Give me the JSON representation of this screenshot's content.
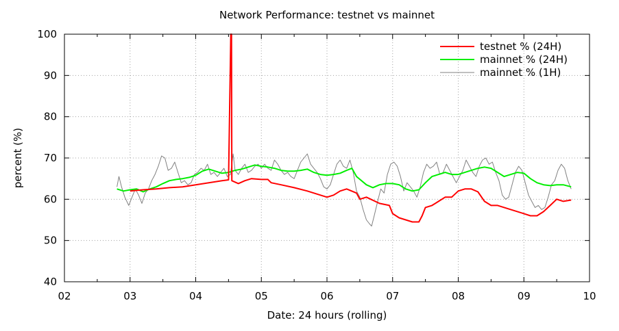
{
  "chart_data": {
    "type": "line",
    "title": "Network Performance: testnet vs mainnet",
    "xlabel": "Date: 24 hours (rolling)",
    "ylabel": "percent (%)",
    "xlim": [
      2,
      10
    ],
    "ylim": [
      40,
      100
    ],
    "x_ticks": [
      2,
      3,
      4,
      5,
      6,
      7,
      8,
      9,
      10
    ],
    "x_tick_labels": [
      "02",
      "03",
      "04",
      "05",
      "06",
      "07",
      "08",
      "09",
      "10"
    ],
    "y_ticks": [
      40,
      50,
      60,
      70,
      80,
      90,
      100
    ],
    "y_tick_labels": [
      "40",
      "50",
      "60",
      "70",
      "80",
      "90",
      "100"
    ],
    "grid": true,
    "legend_position": "top-right",
    "series": [
      {
        "name": "testnet % (24H)",
        "color": "#ff0000",
        "points": [
          [
            3.0,
            62.0
          ],
          [
            3.2,
            62.3
          ],
          [
            3.4,
            62.5
          ],
          [
            3.6,
            62.8
          ],
          [
            3.8,
            63.0
          ],
          [
            4.0,
            63.5
          ],
          [
            4.2,
            64.0
          ],
          [
            4.4,
            64.5
          ],
          [
            4.5,
            64.7
          ],
          [
            4.535,
            100
          ],
          [
            4.545,
            100
          ],
          [
            4.55,
            64.5
          ],
          [
            4.65,
            63.8
          ],
          [
            4.75,
            64.5
          ],
          [
            4.85,
            65.0
          ],
          [
            5.0,
            64.8
          ],
          [
            5.1,
            64.8
          ],
          [
            5.15,
            64.0
          ],
          [
            5.3,
            63.5
          ],
          [
            5.5,
            62.8
          ],
          [
            5.7,
            62.0
          ],
          [
            5.9,
            61.0
          ],
          [
            6.0,
            60.5
          ],
          [
            6.1,
            61.0
          ],
          [
            6.2,
            62.0
          ],
          [
            6.3,
            62.5
          ],
          [
            6.45,
            61.5
          ],
          [
            6.5,
            60.0
          ],
          [
            6.6,
            60.5
          ],
          [
            6.8,
            59.0
          ],
          [
            6.95,
            58.5
          ],
          [
            7.0,
            56.5
          ],
          [
            7.1,
            55.5
          ],
          [
            7.2,
            55.0
          ],
          [
            7.3,
            54.5
          ],
          [
            7.4,
            54.5
          ],
          [
            7.45,
            56.0
          ],
          [
            7.5,
            58.0
          ],
          [
            7.6,
            58.5
          ],
          [
            7.7,
            59.5
          ],
          [
            7.8,
            60.5
          ],
          [
            7.9,
            60.5
          ],
          [
            8.0,
            62.0
          ],
          [
            8.1,
            62.5
          ],
          [
            8.2,
            62.5
          ],
          [
            8.3,
            61.8
          ],
          [
            8.4,
            59.5
          ],
          [
            8.5,
            58.5
          ],
          [
            8.6,
            58.5
          ],
          [
            8.7,
            58.0
          ],
          [
            8.8,
            57.5
          ],
          [
            9.0,
            56.5
          ],
          [
            9.1,
            56.0
          ],
          [
            9.2,
            56.0
          ],
          [
            9.3,
            57.0
          ],
          [
            9.4,
            58.5
          ],
          [
            9.5,
            60.0
          ],
          [
            9.6,
            59.5
          ],
          [
            9.72,
            59.8
          ]
        ]
      },
      {
        "name": "mainnet % (24H)",
        "color": "#00ee00",
        "points": [
          [
            2.8,
            62.5
          ],
          [
            2.9,
            62.0
          ],
          [
            3.0,
            62.3
          ],
          [
            3.1,
            62.5
          ],
          [
            3.2,
            61.8
          ],
          [
            3.3,
            62.5
          ],
          [
            3.4,
            63.0
          ],
          [
            3.5,
            63.8
          ],
          [
            3.6,
            64.5
          ],
          [
            3.7,
            64.8
          ],
          [
            3.8,
            65.0
          ],
          [
            3.9,
            65.3
          ],
          [
            4.0,
            65.8
          ],
          [
            4.1,
            66.8
          ],
          [
            4.2,
            67.3
          ],
          [
            4.3,
            66.8
          ],
          [
            4.4,
            66.3
          ],
          [
            4.5,
            66.5
          ],
          [
            4.6,
            67.0
          ],
          [
            4.7,
            67.3
          ],
          [
            4.8,
            67.8
          ],
          [
            4.9,
            68.3
          ],
          [
            5.0,
            68.0
          ],
          [
            5.1,
            67.8
          ],
          [
            5.2,
            67.5
          ],
          [
            5.3,
            67.0
          ],
          [
            5.4,
            66.8
          ],
          [
            5.5,
            66.8
          ],
          [
            5.6,
            67.0
          ],
          [
            5.7,
            67.3
          ],
          [
            5.8,
            66.5
          ],
          [
            5.9,
            66.0
          ],
          [
            6.0,
            65.8
          ],
          [
            6.1,
            66.0
          ],
          [
            6.2,
            66.3
          ],
          [
            6.3,
            67.0
          ],
          [
            6.38,
            67.5
          ],
          [
            6.45,
            65.5
          ],
          [
            6.6,
            63.5
          ],
          [
            6.7,
            62.8
          ],
          [
            6.8,
            63.5
          ],
          [
            6.9,
            63.8
          ],
          [
            7.0,
            63.8
          ],
          [
            7.1,
            63.5
          ],
          [
            7.2,
            62.5
          ],
          [
            7.3,
            62.0
          ],
          [
            7.4,
            62.3
          ],
          [
            7.5,
            64.0
          ],
          [
            7.6,
            65.5
          ],
          [
            7.7,
            66.0
          ],
          [
            7.8,
            66.5
          ],
          [
            7.9,
            66.0
          ],
          [
            8.0,
            66.0
          ],
          [
            8.1,
            66.5
          ],
          [
            8.2,
            67.0
          ],
          [
            8.3,
            67.5
          ],
          [
            8.4,
            67.8
          ],
          [
            8.5,
            67.5
          ],
          [
            8.6,
            66.5
          ],
          [
            8.7,
            65.5
          ],
          [
            8.8,
            66.0
          ],
          [
            8.9,
            66.5
          ],
          [
            9.0,
            66.3
          ],
          [
            9.1,
            65.0
          ],
          [
            9.2,
            64.0
          ],
          [
            9.3,
            63.5
          ],
          [
            9.4,
            63.3
          ],
          [
            9.5,
            63.5
          ],
          [
            9.6,
            63.5
          ],
          [
            9.72,
            63.0
          ]
        ]
      },
      {
        "name": "mainnet % (1H)",
        "color": "#808080",
        "points": [
          [
            2.8,
            63.0
          ],
          [
            2.83,
            65.5
          ],
          [
            2.87,
            63.0
          ],
          [
            2.92,
            60.5
          ],
          [
            2.98,
            58.5
          ],
          [
            3.03,
            60.5
          ],
          [
            3.08,
            62.5
          ],
          [
            3.13,
            61.0
          ],
          [
            3.18,
            59.0
          ],
          [
            3.23,
            61.5
          ],
          [
            3.28,
            62.5
          ],
          [
            3.33,
            64.5
          ],
          [
            3.38,
            66.0
          ],
          [
            3.43,
            68.0
          ],
          [
            3.48,
            70.5
          ],
          [
            3.53,
            70.0
          ],
          [
            3.58,
            67.0
          ],
          [
            3.63,
            67.5
          ],
          [
            3.68,
            69.0
          ],
          [
            3.73,
            66.5
          ],
          [
            3.78,
            64.0
          ],
          [
            3.83,
            64.5
          ],
          [
            3.88,
            63.5
          ],
          [
            3.93,
            64.0
          ],
          [
            3.98,
            66.0
          ],
          [
            4.03,
            66.5
          ],
          [
            4.08,
            67.5
          ],
          [
            4.13,
            67.0
          ],
          [
            4.18,
            68.5
          ],
          [
            4.23,
            66.0
          ],
          [
            4.28,
            66.5
          ],
          [
            4.33,
            65.5
          ],
          [
            4.38,
            66.5
          ],
          [
            4.43,
            67.5
          ],
          [
            4.48,
            65.5
          ],
          [
            4.53,
            66.0
          ],
          [
            4.57,
            71.0
          ],
          [
            4.6,
            67.0
          ],
          [
            4.65,
            66.0
          ],
          [
            4.7,
            67.5
          ],
          [
            4.75,
            68.5
          ],
          [
            4.8,
            66.5
          ],
          [
            4.85,
            67.0
          ],
          [
            4.9,
            68.0
          ],
          [
            4.95,
            68.5
          ],
          [
            5.0,
            67.5
          ],
          [
            5.05,
            68.5
          ],
          [
            5.1,
            67.5
          ],
          [
            5.15,
            67.0
          ],
          [
            5.2,
            69.5
          ],
          [
            5.25,
            68.5
          ],
          [
            5.3,
            67.0
          ],
          [
            5.35,
            66.0
          ],
          [
            5.4,
            66.5
          ],
          [
            5.45,
            65.5
          ],
          [
            5.5,
            65.0
          ],
          [
            5.55,
            67.0
          ],
          [
            5.6,
            69.0
          ],
          [
            5.65,
            70.0
          ],
          [
            5.7,
            71.0
          ],
          [
            5.75,
            68.5
          ],
          [
            5.8,
            67.5
          ],
          [
            5.85,
            66.5
          ],
          [
            5.9,
            65.0
          ],
          [
            5.95,
            63.0
          ],
          [
            6.0,
            62.5
          ],
          [
            6.05,
            63.5
          ],
          [
            6.1,
            66.0
          ],
          [
            6.15,
            68.5
          ],
          [
            6.2,
            69.5
          ],
          [
            6.25,
            68.0
          ],
          [
            6.3,
            67.5
          ],
          [
            6.35,
            69.5
          ],
          [
            6.4,
            66.5
          ],
          [
            6.45,
            62.0
          ],
          [
            6.5,
            60.5
          ],
          [
            6.55,
            57.5
          ],
          [
            6.6,
            55.0
          ],
          [
            6.65,
            54.0
          ],
          [
            6.68,
            53.5
          ],
          [
            6.72,
            56.0
          ],
          [
            6.78,
            60.0
          ],
          [
            6.82,
            62.5
          ],
          [
            6.87,
            61.5
          ],
          [
            6.92,
            66.0
          ],
          [
            6.97,
            68.5
          ],
          [
            7.02,
            69.0
          ],
          [
            7.07,
            68.0
          ],
          [
            7.12,
            65.5
          ],
          [
            7.17,
            62.0
          ],
          [
            7.22,
            64.0
          ],
          [
            7.27,
            63.0
          ],
          [
            7.32,
            62.0
          ],
          [
            7.37,
            60.5
          ],
          [
            7.42,
            63.0
          ],
          [
            7.47,
            66.5
          ],
          [
            7.52,
            68.5
          ],
          [
            7.57,
            67.5
          ],
          [
            7.62,
            68.0
          ],
          [
            7.67,
            69.0
          ],
          [
            7.72,
            66.0
          ],
          [
            7.77,
            66.5
          ],
          [
            7.82,
            68.5
          ],
          [
            7.87,
            67.0
          ],
          [
            7.92,
            65.5
          ],
          [
            7.97,
            64.0
          ],
          [
            8.02,
            65.5
          ],
          [
            8.07,
            67.0
          ],
          [
            8.12,
            69.5
          ],
          [
            8.17,
            68.0
          ],
          [
            8.22,
            66.5
          ],
          [
            8.27,
            65.5
          ],
          [
            8.32,
            68.0
          ],
          [
            8.37,
            69.5
          ],
          [
            8.42,
            70.0
          ],
          [
            8.47,
            68.5
          ],
          [
            8.52,
            69.0
          ],
          [
            8.57,
            66.5
          ],
          [
            8.62,
            64.5
          ],
          [
            8.67,
            61.0
          ],
          [
            8.72,
            60.0
          ],
          [
            8.77,
            60.5
          ],
          [
            8.82,
            63.5
          ],
          [
            8.87,
            66.5
          ],
          [
            8.92,
            68.0
          ],
          [
            8.97,
            67.0
          ],
          [
            9.02,
            64.0
          ],
          [
            9.07,
            61.0
          ],
          [
            9.12,
            59.5
          ],
          [
            9.17,
            58.0
          ],
          [
            9.22,
            58.5
          ],
          [
            9.27,
            57.5
          ],
          [
            9.32,
            58.0
          ],
          [
            9.37,
            60.5
          ],
          [
            9.42,
            63.5
          ],
          [
            9.47,
            64.5
          ],
          [
            9.52,
            67.0
          ],
          [
            9.57,
            68.5
          ],
          [
            9.62,
            67.5
          ],
          [
            9.67,
            64.5
          ],
          [
            9.72,
            62.5
          ]
        ]
      }
    ]
  }
}
